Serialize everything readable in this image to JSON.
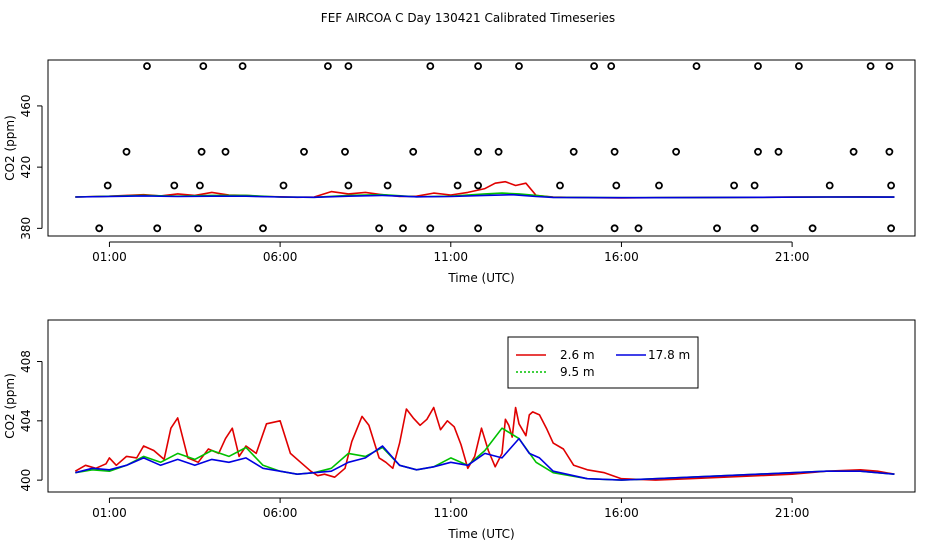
{
  "title": "FEF AIRCOA C  Day 130421  Calibrated Timeseries",
  "colors": {
    "red": "#e00000",
    "green": "#00c000",
    "blue": "#0000e0",
    "black": "#000000"
  },
  "chart_data": [
    {
      "id": "top",
      "type": "line",
      "xlabel": "Time (UTC)",
      "ylabel": "CO2 (ppm)",
      "xlim": [
        -0.8,
        24.6
      ],
      "ylim": [
        375,
        490
      ],
      "xticks": [
        1,
        6,
        11,
        16,
        21
      ],
      "xtick_labels": [
        "01:00",
        "06:00",
        "11:00",
        "16:00",
        "21:00"
      ],
      "yticks": [
        380,
        420,
        460
      ],
      "ytick_labels": [
        "380",
        "420",
        "460"
      ],
      "series": [
        {
          "name": "2.6 m",
          "color": "#e00000",
          "x": [
            0,
            1,
            1.5,
            2,
            2.5,
            3,
            3.5,
            4,
            4.5,
            5,
            5.5,
            6,
            6.5,
            7,
            7.5,
            8,
            8.5,
            9,
            9.5,
            10,
            10.5,
            11,
            11.5,
            12,
            12.3,
            12.6,
            12.9,
            13.2,
            13.5,
            14,
            15,
            16,
            17,
            18,
            19,
            20,
            21,
            22,
            23,
            24
          ],
          "y": [
            400.5,
            401,
            401.5,
            402,
            401.2,
            402.5,
            401.5,
            403.5,
            401.8,
            401.5,
            400.8,
            400.6,
            400.3,
            400.5,
            404,
            402.5,
            403.5,
            402,
            400.8,
            401,
            403,
            401.8,
            403.5,
            406,
            409.5,
            410.5,
            408,
            409.5,
            401.5,
            400.5,
            400,
            399.8,
            400,
            400.1,
            400.2,
            400.3,
            400.4,
            400.5,
            400.6,
            400.4
          ]
        },
        {
          "name": "9.5 m",
          "color": "#00c000",
          "x": [
            0,
            2,
            3,
            4,
            5,
            6,
            7,
            8,
            9,
            10,
            11,
            12,
            12.5,
            13,
            13.5,
            14,
            16,
            18,
            20,
            22,
            24
          ],
          "y": [
            400.5,
            401.5,
            401,
            401.5,
            401.5,
            400.5,
            400.3,
            401.5,
            402,
            400.6,
            401,
            402.5,
            403,
            402.5,
            401.5,
            400.3,
            400,
            400.1,
            400.3,
            400.5,
            400.4
          ]
        },
        {
          "name": "17.8 m",
          "color": "#0000e0",
          "x": [
            0,
            2,
            3,
            4,
            5,
            6,
            7,
            8,
            9,
            10,
            11,
            12,
            12.8,
            13.5,
            14,
            16,
            18,
            20,
            22,
            24
          ],
          "y": [
            400.5,
            401.2,
            400.8,
            401,
            401,
            400.5,
            400.3,
            401,
            401.5,
            400.6,
            400.8,
            401.5,
            402,
            400.8,
            400.2,
            400,
            400.1,
            400.3,
            400.5,
            400.4
          ]
        }
      ],
      "points": {
        "name": "calibration",
        "marker": "open-circle",
        "color": "#000000",
        "x": [
          0.7,
          2.4,
          3.6,
          5.5,
          8.9,
          9.6,
          10.4,
          11.8,
          13.6,
          15.8,
          16.5,
          18.8,
          19.9,
          21.6,
          23.9,
          0.95,
          2.9,
          3.65,
          6.1,
          8.0,
          9.15,
          11.2,
          11.8,
          14.2,
          15.85,
          17.1,
          19.3,
          19.9,
          22.1,
          23.9,
          1.5,
          3.7,
          4.4,
          6.7,
          7.9,
          9.9,
          11.8,
          12.4,
          14.6,
          15.8,
          17.6,
          20.0,
          20.6,
          22.8,
          23.85,
          2.1,
          3.75,
          4.9,
          7.4,
          8.0,
          10.4,
          11.8,
          13.0,
          15.2,
          15.7,
          18.2,
          20.0,
          21.2,
          23.3,
          23.85
        ],
        "y": [
          380,
          380,
          380,
          380,
          380,
          380,
          380,
          380,
          380,
          380,
          380,
          380,
          380,
          380,
          380,
          408,
          408,
          408,
          408,
          408,
          408,
          408,
          408,
          408,
          408,
          408,
          408,
          408,
          408,
          408,
          430,
          430,
          430,
          430,
          430,
          430,
          430,
          430,
          430,
          430,
          430,
          430,
          430,
          430,
          430,
          486,
          486,
          486,
          486,
          486,
          486,
          486,
          486,
          486,
          486,
          486,
          486,
          486,
          486,
          486
        ]
      }
    },
    {
      "id": "bottom",
      "type": "line",
      "xlabel": "Time (UTC)",
      "ylabel": "CO2 (ppm)",
      "xlim": [
        -0.8,
        24.6
      ],
      "ylim": [
        399.2,
        410.8
      ],
      "xticks": [
        1,
        6,
        11,
        16,
        21
      ],
      "xtick_labels": [
        "01:00",
        "06:00",
        "11:00",
        "16:00",
        "21:00"
      ],
      "yticks": [
        400,
        404,
        408
      ],
      "ytick_labels": [
        "400",
        "404",
        "408"
      ],
      "legend": {
        "placement": "top-center",
        "entries": [
          "2.6 m",
          "9.5 m",
          "17.8 m"
        ]
      },
      "series": [
        {
          "name": "2.6 m",
          "color": "#e00000",
          "x": [
            0,
            0.3,
            0.6,
            0.9,
            1.0,
            1.2,
            1.5,
            1.8,
            2.0,
            2.3,
            2.6,
            2.8,
            3.0,
            3.3,
            3.6,
            3.9,
            4.2,
            4.4,
            4.6,
            4.8,
            5.0,
            5.3,
            5.6,
            6.0,
            6.3,
            6.6,
            6.9,
            7.1,
            7.3,
            7.6,
            7.9,
            8.1,
            8.4,
            8.6,
            8.9,
            9.1,
            9.3,
            9.5,
            9.7,
            9.9,
            10.1,
            10.3,
            10.5,
            10.7,
            10.9,
            11.1,
            11.3,
            11.5,
            11.7,
            11.9,
            12.1,
            12.3,
            12.5,
            12.6,
            12.7,
            12.8,
            12.9,
            13.0,
            13.2,
            13.3,
            13.4,
            13.6,
            13.8,
            14.0,
            14.3,
            14.6,
            15.0,
            15.5,
            16.0,
            17.0,
            18.0,
            19.0,
            20.0,
            21.0,
            22.0,
            23.0,
            23.5,
            24.0
          ],
          "y": [
            400.6,
            401.0,
            400.8,
            401.1,
            401.5,
            401.0,
            401.6,
            401.5,
            402.3,
            402.0,
            401.4,
            403.5,
            404.2,
            401.5,
            401.2,
            402.1,
            401.8,
            402.8,
            403.5,
            401.6,
            402.3,
            401.8,
            403.8,
            404.0,
            401.8,
            401.2,
            400.6,
            400.3,
            400.4,
            400.2,
            400.8,
            402.6,
            404.3,
            403.7,
            401.5,
            401.2,
            400.8,
            402.5,
            404.8,
            404.2,
            403.7,
            404.1,
            404.9,
            403.4,
            404.0,
            403.6,
            402.4,
            400.8,
            401.6,
            403.5,
            402.0,
            400.9,
            401.8,
            404.1,
            403.7,
            402.9,
            404.9,
            403.8,
            403.0,
            404.4,
            404.6,
            404.4,
            403.5,
            402.5,
            402.1,
            401.0,
            400.7,
            400.5,
            400.1,
            400.0,
            400.1,
            400.2,
            400.3,
            400.4,
            400.6,
            400.7,
            400.6,
            400.4
          ]
        },
        {
          "name": "9.5 m",
          "color": "#00c000",
          "x": [
            0,
            0.5,
            1.0,
            1.5,
            2.0,
            2.5,
            3.0,
            3.5,
            4.0,
            4.5,
            5.0,
            5.5,
            6.0,
            6.5,
            7.0,
            7.5,
            8.0,
            8.5,
            9.0,
            9.5,
            10.0,
            10.5,
            11.0,
            11.5,
            12.0,
            12.5,
            13.0,
            13.5,
            14.0,
            15.0,
            16.0,
            17.0,
            18.0,
            19.0,
            20.0,
            21.0,
            22.0,
            23.0,
            24.0
          ],
          "y": [
            400.5,
            400.7,
            400.6,
            401.0,
            401.6,
            401.2,
            401.8,
            401.4,
            402.0,
            401.6,
            402.2,
            401.0,
            400.6,
            400.4,
            400.5,
            400.8,
            401.8,
            401.6,
            402.2,
            401.0,
            400.7,
            400.9,
            401.5,
            401.0,
            402.0,
            403.5,
            402.8,
            401.2,
            400.5,
            400.1,
            400.0,
            400.1,
            400.2,
            400.3,
            400.4,
            400.5,
            400.6,
            400.6,
            400.4
          ]
        },
        {
          "name": "17.8 m",
          "color": "#0000e0",
          "x": [
            0,
            0.5,
            1.0,
            1.5,
            2.0,
            2.5,
            3.0,
            3.5,
            4.0,
            4.5,
            5.0,
            5.5,
            6.0,
            6.5,
            7.0,
            7.5,
            8.0,
            8.5,
            9.0,
            9.5,
            10.0,
            10.5,
            11.0,
            11.5,
            12.0,
            12.5,
            13.0,
            13.3,
            13.6,
            14.0,
            15.0,
            16.0,
            17.0,
            18.0,
            19.0,
            20.0,
            21.0,
            22.0,
            23.0,
            24.0
          ],
          "y": [
            400.5,
            400.8,
            400.7,
            401.0,
            401.5,
            401.0,
            401.4,
            401.0,
            401.4,
            401.2,
            401.5,
            400.8,
            400.6,
            400.4,
            400.5,
            400.6,
            401.2,
            401.5,
            402.3,
            401.0,
            400.7,
            400.9,
            401.2,
            401.0,
            401.8,
            401.5,
            402.8,
            401.8,
            401.5,
            400.6,
            400.1,
            400.0,
            400.1,
            400.2,
            400.3,
            400.4,
            400.5,
            400.6,
            400.6,
            400.4
          ]
        }
      ]
    }
  ]
}
